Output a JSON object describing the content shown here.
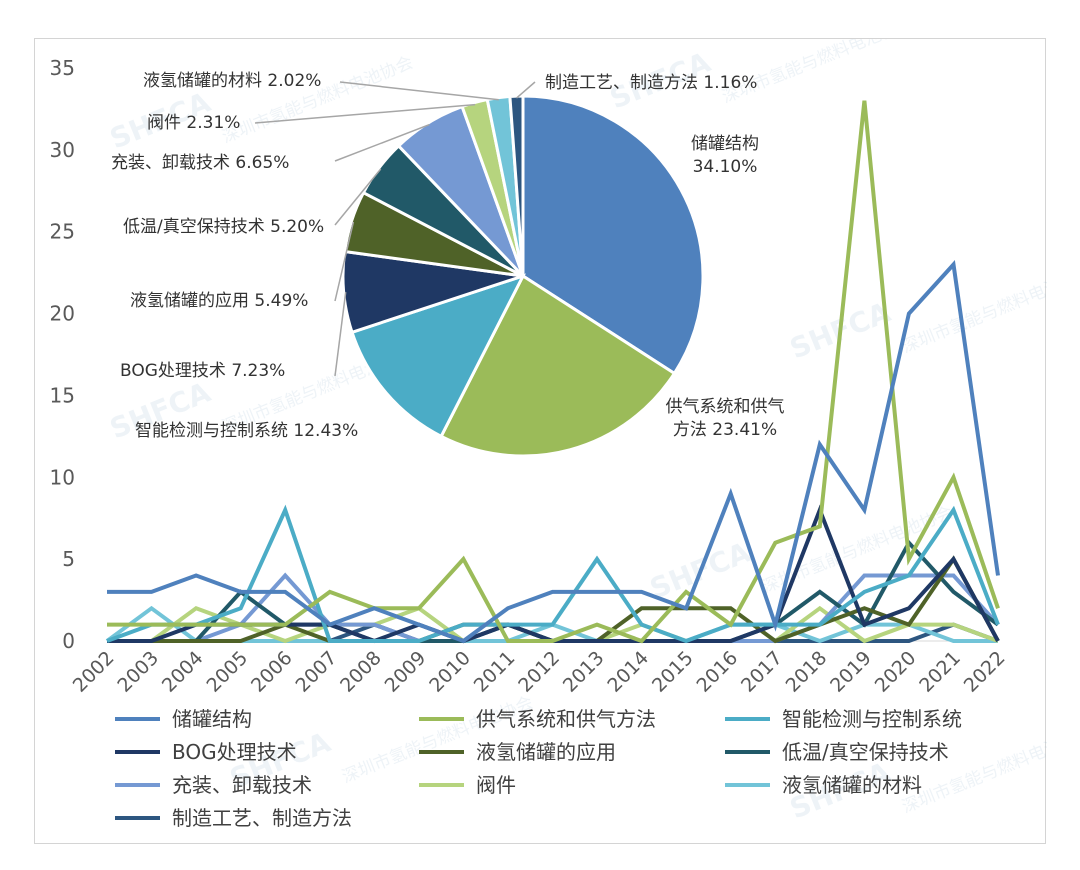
{
  "chart_data": {
    "type": "line",
    "x": [
      "2002",
      "2003",
      "2004",
      "2005",
      "2006",
      "2007",
      "2008",
      "2009",
      "2010",
      "2011",
      "2012",
      "2013",
      "2014",
      "2015",
      "2016",
      "2017",
      "2018",
      "2019",
      "2020",
      "2021",
      "2022"
    ],
    "ylim": [
      0,
      35
    ],
    "yticks": [
      0,
      5,
      10,
      15,
      20,
      25,
      30,
      35
    ],
    "grid": false,
    "legend_position": "bottom",
    "series": [
      {
        "name": "储罐结构",
        "color": "#4f81bd",
        "values": [
          3,
          3,
          4,
          3,
          3,
          1,
          2,
          1,
          0,
          2,
          3,
          3,
          3,
          2,
          9,
          1,
          12,
          8,
          20,
          23,
          4
        ]
      },
      {
        "name": "供气系统和供气方法",
        "color": "#9bbb59",
        "values": [
          1,
          1,
          1,
          1,
          1,
          3,
          2,
          2,
          5,
          0,
          0,
          1,
          0,
          3,
          1,
          6,
          7,
          33,
          5,
          10,
          2
        ]
      },
      {
        "name": "智能检测与控制系统",
        "color": "#4bacc6",
        "values": [
          0,
          1,
          1,
          2,
          8,
          0,
          0,
          0,
          1,
          1,
          1,
          5,
          1,
          0,
          1,
          1,
          1,
          3,
          4,
          8,
          1
        ]
      },
      {
        "name": "BOG处理技术",
        "color": "#1f3864",
        "values": [
          0,
          0,
          1,
          1,
          1,
          1,
          0,
          1,
          0,
          1,
          0,
          0,
          0,
          0,
          0,
          1,
          8,
          1,
          2,
          5,
          0
        ]
      },
      {
        "name": "液氢储罐的应用",
        "color": "#4f6228",
        "values": [
          0,
          0,
          0,
          0,
          1,
          0,
          0,
          0,
          1,
          1,
          0,
          0,
          2,
          2,
          2,
          0,
          1,
          2,
          1,
          5,
          0
        ]
      },
      {
        "name": "低温/真空保持技术",
        "color": "#215968",
        "values": [
          0,
          0,
          0,
          3,
          1,
          1,
          0,
          0,
          0,
          1,
          0,
          0,
          0,
          0,
          0,
          1,
          3,
          1,
          6,
          3,
          1
        ]
      },
      {
        "name": "充装、卸载技术",
        "color": "#7599d3",
        "values": [
          0,
          0,
          0,
          1,
          4,
          1,
          1,
          0,
          0,
          1,
          0,
          0,
          0,
          0,
          0,
          0,
          1,
          4,
          4,
          4,
          1
        ]
      },
      {
        "name": "阀件",
        "color": "#b6d47e",
        "values": [
          0,
          0,
          2,
          1,
          0,
          1,
          1,
          2,
          0,
          1,
          0,
          0,
          1,
          0,
          0,
          0,
          2,
          0,
          1,
          1,
          0
        ]
      },
      {
        "name": "液氢储罐的材料",
        "color": "#72c4d8",
        "values": [
          0,
          2,
          0,
          0,
          0,
          0,
          0,
          0,
          0,
          0,
          1,
          0,
          0,
          0,
          1,
          1,
          0,
          1,
          1,
          0,
          0
        ]
      },
      {
        "name": "制造工艺、制造方法",
        "color": "#2d5680",
        "values": [
          0,
          0,
          0,
          0,
          0,
          0,
          1,
          0,
          0,
          0,
          0,
          0,
          0,
          0,
          0,
          0,
          0,
          0,
          0,
          1,
          0
        ]
      }
    ],
    "pie": {
      "slices": [
        {
          "label": "储罐结构",
          "line1": "储罐结构",
          "line2": "34.10%",
          "percent": 34.1,
          "color": "#4f81bd"
        },
        {
          "label": "供气系统和供气方法",
          "line1": "供气系统和供气",
          "line2": "方法 23.41%",
          "percent": 23.41,
          "color": "#9bbb59"
        },
        {
          "label": "智能检测与控制系统",
          "line1": "智能检测与控制系统 12.43%",
          "line2": "",
          "percent": 12.43,
          "color": "#4bacc6"
        },
        {
          "label": "BOG处理技术",
          "line1": "BOG处理技术 7.23%",
          "line2": "",
          "percent": 7.23,
          "color": "#1f3864"
        },
        {
          "label": "液氢储罐的应用",
          "line1": "液氢储罐的应用 5.49%",
          "line2": "",
          "percent": 5.49,
          "color": "#4f6228"
        },
        {
          "label": "低温/真空保持技术",
          "line1": "低温/真空保持技术 5.20%",
          "line2": "",
          "percent": 5.2,
          "color": "#215968"
        },
        {
          "label": "充装、卸载技术",
          "line1": "充装、卸载技术 6.65%",
          "line2": "",
          "percent": 6.65,
          "color": "#7599d3"
        },
        {
          "label": "阀件",
          "line1": "阀件 2.31%",
          "line2": "",
          "percent": 2.31,
          "color": "#b6d47e"
        },
        {
          "label": "液氢储罐的材料",
          "line1": "液氢储罐的材料 2.02%",
          "line2": "",
          "percent": 2.02,
          "color": "#72c4d8"
        },
        {
          "label": "制造工艺、制造方法",
          "line1": "制造工艺、制造方法 1.16%",
          "line2": "",
          "percent": 1.16,
          "color": "#2d5680"
        }
      ]
    }
  },
  "watermark": {
    "text_cn": "深圳市氢能与燃料电池协会",
    "text_en": "Shenzhen Hydrogen and Fuel Cell Association",
    "logo": "SHFCA"
  }
}
